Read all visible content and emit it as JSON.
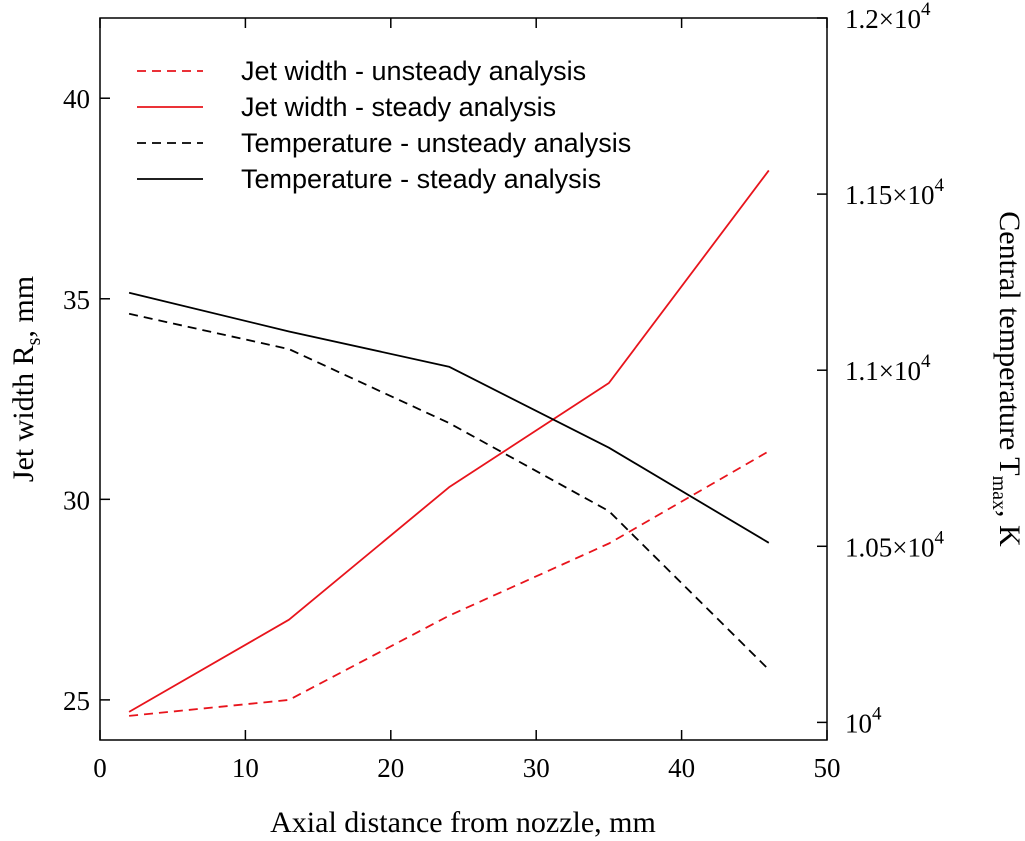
{
  "chart_data": {
    "type": "line",
    "xlabel": "Axial distance from nozzle, mm",
    "ylabel_left": {
      "main": "Jet width R",
      "sub": "s",
      "tail": ", mm"
    },
    "ylabel_right": {
      "main": "Central temperature T",
      "sub": "max",
      "tail": ", K"
    },
    "xlim": [
      0,
      50
    ],
    "ylim_left": [
      24,
      42
    ],
    "ylim_right": [
      9950,
      12000
    ],
    "x_ticks": [
      {
        "value": 0,
        "label": "0"
      },
      {
        "value": 10,
        "label": "10"
      },
      {
        "value": 20,
        "label": "20"
      },
      {
        "value": 30,
        "label": "30"
      },
      {
        "value": 40,
        "label": "40"
      },
      {
        "value": 50,
        "label": "50"
      }
    ],
    "y_left_ticks": [
      {
        "value": 25,
        "label": "25"
      },
      {
        "value": 30,
        "label": "30"
      },
      {
        "value": 35,
        "label": "35"
      },
      {
        "value": 40,
        "label": "40"
      }
    ],
    "y_right_ticks": [
      {
        "value": 10000,
        "mantissa": "10",
        "exp": "4"
      },
      {
        "value": 10500,
        "mantissa": "1.05×10",
        "exp": "4"
      },
      {
        "value": 11000,
        "mantissa": "1.1×10",
        "exp": "4"
      },
      {
        "value": 11500,
        "mantissa": "1.15×10",
        "exp": "4"
      },
      {
        "value": 12000,
        "mantissa": "1.2×10",
        "exp": "4"
      }
    ],
    "grid": false,
    "legend_position": "top-left",
    "series": [
      {
        "name": "Jet width - unsteady analysis",
        "axis": "left",
        "color": "#e8141c",
        "dashed": true,
        "x": [
          2,
          13,
          24,
          35,
          46
        ],
        "y": [
          24.6,
          25.0,
          27.1,
          28.9,
          31.2
        ]
      },
      {
        "name": "Jet width - steady analysis",
        "axis": "left",
        "color": "#e8141c",
        "dashed": false,
        "x": [
          2,
          13,
          24,
          35,
          46
        ],
        "y": [
          24.7,
          27.0,
          30.3,
          32.9,
          38.2
        ]
      },
      {
        "name": "Temperature - unsteady analysis",
        "axis": "right",
        "color": "#000000",
        "dashed": true,
        "x": [
          2,
          13,
          24,
          35,
          46
        ],
        "y": [
          11160,
          11060,
          10850,
          10600,
          10150
        ]
      },
      {
        "name": "Temperature - steady analysis",
        "axis": "right",
        "color": "#000000",
        "dashed": false,
        "x": [
          2,
          13,
          24,
          35,
          46
        ],
        "y": [
          11220,
          11110,
          11010,
          10780,
          10510
        ]
      }
    ]
  }
}
